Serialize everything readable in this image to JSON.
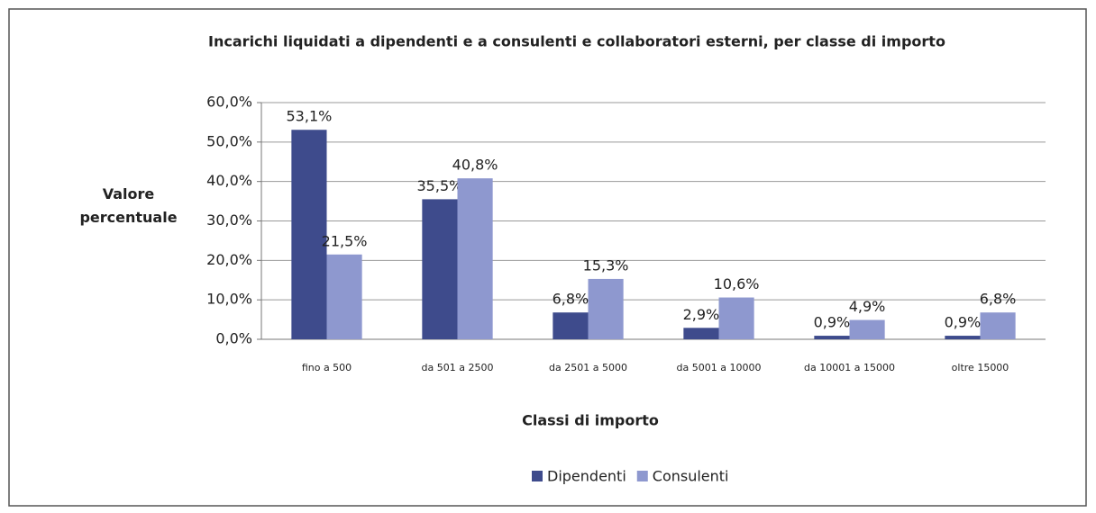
{
  "chart_data": {
    "type": "bar",
    "title": "Incarichi liquidati a dipendenti e a consulenti e collaboratori esterni, per classe di importo",
    "y_label": "Valore percentuale",
    "x_label": "Classi di importo",
    "categories": [
      "fino a 500",
      "da 501 a 2500",
      "da 2501 a 5000",
      "da 5001 a 10000",
      "da 10001 a 15000",
      "oltre 15000"
    ],
    "series": [
      {
        "name": "Dipendenti",
        "color": "#3e4b8c",
        "values": [
          53.1,
          35.5,
          6.8,
          2.9,
          0.9,
          0.9
        ],
        "value_labels": [
          "53,1%",
          "35,5%",
          "6,8%",
          "2,9%",
          "0,9%",
          "0,9%"
        ]
      },
      {
        "name": "Consulenti",
        "color": "#8e98cf",
        "values": [
          21.5,
          40.8,
          15.3,
          10.6,
          4.9,
          6.8
        ],
        "value_labels": [
          "21,5%",
          "40,8%",
          "15,3%",
          "10,6%",
          "4,9%",
          "6,8%"
        ]
      }
    ],
    "ylim": [
      0,
      60
    ],
    "yticks": [
      {
        "value": 0,
        "label": "0,0%"
      },
      {
        "value": 10,
        "label": "10,0%"
      },
      {
        "value": 20,
        "label": "20,0%"
      },
      {
        "value": 30,
        "label": "30,0%"
      },
      {
        "value": 40,
        "label": "40,0%"
      },
      {
        "value": 50,
        "label": "50,0%"
      },
      {
        "value": 60,
        "label": "60,0%"
      }
    ],
    "grid": true,
    "legend": "bottom"
  }
}
